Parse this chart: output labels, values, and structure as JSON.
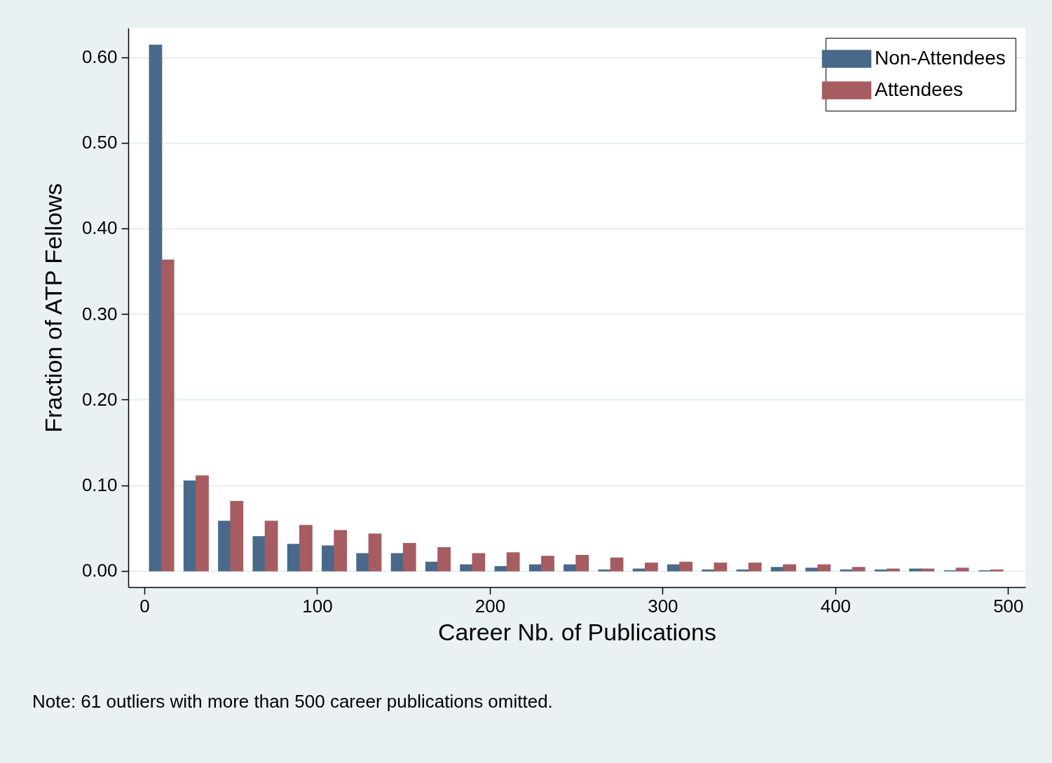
{
  "chart_data": {
    "type": "histogram",
    "xlabel": "Career Nb. of Publications",
    "ylabel": "Fraction of ATP Fellows",
    "annotations": [
      "Note: 61 outliers with more than 500 career publications omitted."
    ],
    "bins": [
      0,
      20,
      40,
      60,
      80,
      100,
      120,
      140,
      160,
      180,
      200,
      220,
      240,
      260,
      280,
      300,
      320,
      340,
      360,
      380,
      400,
      420,
      440,
      460,
      480,
      500
    ],
    "series": [
      {
        "name": "Non-Attendees",
        "color": "#49698a",
        "values": [
          0.614,
          0.105,
          0.058,
          0.04,
          0.031,
          0.029,
          0.02,
          0.02,
          0.01,
          0.007,
          0.005,
          0.007,
          0.007,
          0.001,
          0.002,
          0.007,
          0.001,
          0.001,
          0.004,
          0.003,
          0.001,
          0.001,
          0.002,
          0,
          0
        ]
      },
      {
        "name": "Attendees",
        "color": "#a65c60",
        "values": [
          0.363,
          0.111,
          0.081,
          0.058,
          0.053,
          0.047,
          0.043,
          0.032,
          0.027,
          0.02,
          0.021,
          0.017,
          0.018,
          0.015,
          0.009,
          0.01,
          0.009,
          0.009,
          0.007,
          0.007,
          0.004,
          0.002,
          0.002,
          0.003,
          0.001
        ]
      }
    ],
    "xlim": [
      -9.3,
      510
    ],
    "xticks": [
      0,
      100,
      200,
      300,
      400,
      500
    ],
    "ylim": [
      -0.019,
      0.634
    ],
    "yticks": [
      {
        "value": 0,
        "label": "0.00"
      },
      {
        "value": 0.1,
        "label": "0.10"
      },
      {
        "value": 0.2,
        "label": "0.20"
      },
      {
        "value": 0.3,
        "label": "0.30"
      },
      {
        "value": 0.4,
        "label": "0.40"
      },
      {
        "value": 0.5,
        "label": "0.50"
      },
      {
        "value": 0.6,
        "label": "0.60"
      }
    ],
    "grid": "y",
    "legend": "top right"
  }
}
